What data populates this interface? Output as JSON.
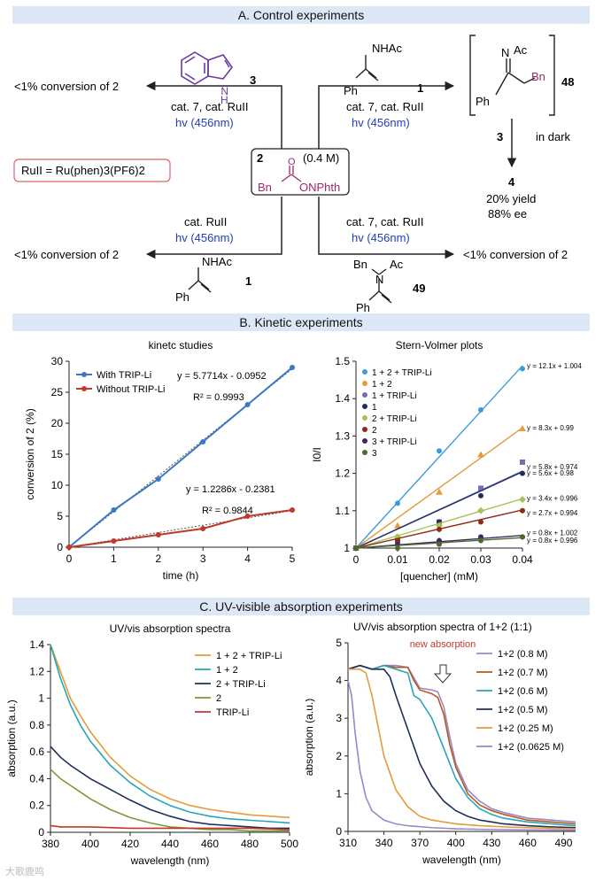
{
  "sections": {
    "a": "A. Control experiments",
    "b": "B. Kinetic experiments",
    "c": "C. UV-visible absorption experiments"
  },
  "scheme": {
    "cmpd3": "3",
    "cmpd1_top": "1",
    "cmpd1_bottom": "1",
    "cmpd48": "48",
    "cmpd49": "49",
    "cmpd4": "4",
    "cmpd2": "2",
    "conc": "(0.4 M)",
    "bn_left": "Bn",
    "onphth": "ONPhth",
    "o_atom": "O",
    "nhac_label": "NHAc",
    "ph_label": "Ph",
    "n_atom": "N",
    "h_atom": "H",
    "ac_label": "Ac",
    "bn_label": "Bn",
    "ru_def": "RuII = Ru(phen)3(PF6)2",
    "tl_cond1": "cat. 7, cat. RuII",
    "tl_cond2": "hv (456nm)",
    "tl_result": "<1% conversion of 2",
    "tr_cond1": "cat. 7, cat. RuII",
    "tr_cond2": "hv (456nm)",
    "bl_cond1": "cat. RuII",
    "bl_cond2": "hv (456nm)",
    "bl_result": "<1% conversion of 2",
    "br_cond1": "cat. 7, cat. RuII",
    "br_cond2": "hv (456nm)",
    "br_result": "<1% conversion of 2",
    "dark_reagent": "3",
    "dark_label": "in dark",
    "yield": "20% yield",
    "ee": "88% ee",
    "watermark": "大歌鹿鸣"
  },
  "colors": {
    "blue": "#3a78c2",
    "red": "#c0392b",
    "purple_struct": "#6a3aa0",
    "magenta": "#9b2a6b",
    "orange": "#e39b3c",
    "teal": "#28a6b8",
    "navy": "#1f2f5a",
    "olive": "#7a9a38",
    "lavender": "#9b87c9",
    "darkred": "#8e2a18",
    "darkgreen": "#4e6a2a"
  },
  "chart_data": [
    {
      "type": "line",
      "title": "kinetc studies",
      "xlabel": "time (h)",
      "ylabel": "conversion of 2 (%)",
      "xlim": [
        0,
        5
      ],
      "ylim": [
        0,
        30
      ],
      "xticks": [
        0,
        1,
        2,
        3,
        4,
        5
      ],
      "yticks": [
        0,
        5,
        10,
        15,
        20,
        25,
        30
      ],
      "legend_position": "top-left",
      "series": [
        {
          "name": "With TRIP-Li",
          "color": "#3a78c2",
          "x": [
            0,
            1,
            2,
            3,
            4,
            5
          ],
          "y": [
            0,
            6,
            11,
            17,
            23,
            29
          ],
          "fit": {
            "slope": 5.7714,
            "intercept": -0.0952
          },
          "equation": "y = 5.7714x - 0.0952",
          "r2": "R² = 0.9993"
        },
        {
          "name": "Without TRIP-Li",
          "color": "#c0392b",
          "x": [
            0,
            1,
            2,
            3,
            4,
            5
          ],
          "y": [
            0,
            1,
            2,
            3,
            5,
            6
          ],
          "fit": {
            "slope": 1.2286,
            "intercept": -0.2381
          },
          "equation": "y = 1.2286x - 0.2381",
          "r2": "R² = 0.9844"
        }
      ]
    },
    {
      "type": "scatter",
      "title": "Stern-Volmer plots",
      "xlabel": "[quencher] (mM)",
      "ylabel": "I0/I",
      "xlim": [
        0,
        0.04
      ],
      "ylim": [
        1,
        1.5
      ],
      "xticks": [
        0,
        0.01,
        0.02,
        0.03,
        0.04
      ],
      "yticks": [
        1,
        1.1,
        1.2,
        1.3,
        1.4,
        1.5
      ],
      "legend_position": "top-left",
      "series": [
        {
          "name": "1 + 2 + TRIP-Li",
          "color": "#3a9bd8",
          "marker": "circle",
          "slope": 12.1,
          "intercept": 1.004,
          "x": [
            0,
            0.01,
            0.02,
            0.03,
            0.04
          ],
          "y": [
            1,
            1.12,
            1.26,
            1.37,
            1.48
          ],
          "equation": "y = 12.1x + 1.004"
        },
        {
          "name": "1 + 2",
          "color": "#e39b3c",
          "marker": "triangle",
          "slope": 8.3,
          "intercept": 0.99,
          "x": [
            0,
            0.01,
            0.02,
            0.03,
            0.04
          ],
          "y": [
            1,
            1.06,
            1.15,
            1.25,
            1.32
          ],
          "equation": "y = 8.3x + 0.99"
        },
        {
          "name": "1 + TRIP-Li",
          "color": "#7a68b8",
          "marker": "square",
          "slope": 5.8,
          "intercept": 0.974,
          "x": [
            0,
            0.01,
            0.02,
            0.03,
            0.04
          ],
          "y": [
            1,
            1.02,
            1.07,
            1.16,
            1.23
          ],
          "equation": "y = 5.8x + 0.974"
        },
        {
          "name": "1",
          "color": "#1f2f5a",
          "marker": "circle",
          "slope": 5.6,
          "intercept": 0.98,
          "x": [
            0,
            0.01,
            0.02,
            0.03,
            0.04
          ],
          "y": [
            1,
            1.03,
            1.07,
            1.14,
            1.2
          ],
          "equation": "y = 5.6x + 0.98"
        },
        {
          "name": "2 + TRIP-Li",
          "color": "#a8c25a",
          "marker": "diamond",
          "slope": 3.4,
          "intercept": 0.996,
          "x": [
            0,
            0.01,
            0.02,
            0.03,
            0.04
          ],
          "y": [
            1,
            1.03,
            1.06,
            1.1,
            1.13
          ],
          "equation": "y = 3.4x + 0.996"
        },
        {
          "name": "2",
          "color": "#8e2a18",
          "marker": "circle",
          "slope": 2.7,
          "intercept": 0.994,
          "x": [
            0,
            0.01,
            0.02,
            0.03,
            0.04
          ],
          "y": [
            1,
            1.02,
            1.05,
            1.07,
            1.1
          ],
          "equation": "y = 2.7x + 0.994"
        },
        {
          "name": "3 + TRIP-Li",
          "color": "#3b2a66",
          "marker": "circle",
          "slope": 0.8,
          "intercept": 1.002,
          "x": [
            0,
            0.01,
            0.02,
            0.03,
            0.04
          ],
          "y": [
            1,
            1.01,
            1.02,
            1.03,
            1.03
          ],
          "equation": "y = 0.8x + 1.002"
        },
        {
          "name": "3",
          "color": "#4e6a2a",
          "marker": "circle",
          "slope": 0.8,
          "intercept": 0.996,
          "x": [
            0,
            0.01,
            0.02,
            0.03,
            0.04
          ],
          "y": [
            1,
            1.0,
            1.01,
            1.02,
            1.03
          ],
          "equation": "y = 0.8x + 0.996"
        }
      ]
    },
    {
      "type": "line",
      "title": "UV/vis absorption spectra",
      "xlabel": "wavelength (nm)",
      "ylabel": "absorption (a.u.)",
      "xlim": [
        380,
        500
      ],
      "ylim": [
        0,
        1.4
      ],
      "xticks": [
        380,
        400,
        420,
        440,
        460,
        480,
        500
      ],
      "yticks": [
        0,
        0.2,
        0.4,
        0.6,
        0.8,
        1,
        1.2,
        1.4
      ],
      "legend_position": "top-right",
      "series": [
        {
          "name": "1 + 2 + TRIP-Li",
          "color": "#e39b3c",
          "x": [
            380,
            385,
            390,
            395,
            400,
            410,
            420,
            430,
            440,
            450,
            460,
            470,
            480,
            490,
            500
          ],
          "y": [
            1.4,
            1.2,
            1.0,
            0.87,
            0.75,
            0.56,
            0.42,
            0.32,
            0.25,
            0.2,
            0.17,
            0.15,
            0.13,
            0.12,
            0.11
          ]
        },
        {
          "name": "1 + 2",
          "color": "#28a6b8",
          "x": [
            380,
            385,
            390,
            395,
            400,
            410,
            420,
            430,
            440,
            450,
            460,
            470,
            480,
            490,
            500
          ],
          "y": [
            1.4,
            1.15,
            0.95,
            0.8,
            0.68,
            0.5,
            0.37,
            0.27,
            0.2,
            0.15,
            0.12,
            0.1,
            0.09,
            0.08,
            0.07
          ]
        },
        {
          "name": "2 + TRIP-Li",
          "color": "#1f2f5a",
          "x": [
            380,
            385,
            390,
            395,
            400,
            410,
            420,
            430,
            440,
            450,
            460,
            470,
            480,
            490,
            500
          ],
          "y": [
            0.64,
            0.56,
            0.5,
            0.45,
            0.4,
            0.32,
            0.24,
            0.17,
            0.12,
            0.08,
            0.06,
            0.05,
            0.04,
            0.03,
            0.03
          ]
        },
        {
          "name": "2",
          "color": "#7a9a38",
          "x": [
            380,
            385,
            390,
            395,
            400,
            410,
            420,
            430,
            440,
            450,
            460,
            470,
            480,
            490,
            500
          ],
          "y": [
            0.47,
            0.4,
            0.35,
            0.3,
            0.25,
            0.17,
            0.11,
            0.07,
            0.04,
            0.03,
            0.02,
            0.02,
            0.01,
            0.01,
            0.01
          ]
        },
        {
          "name": "TRIP-Li",
          "color": "#c0392b",
          "x": [
            380,
            385,
            390,
            400,
            420,
            440,
            460,
            480,
            500
          ],
          "y": [
            0.05,
            0.04,
            0.04,
            0.04,
            0.03,
            0.03,
            0.03,
            0.03,
            0.02
          ]
        }
      ]
    },
    {
      "type": "line",
      "title": "UV/vis absorption spectra of 1+2 (1:1)",
      "xlabel": "wavelength (nm)",
      "ylabel": "absorption (a.u.)",
      "xlim": [
        310,
        500
      ],
      "ylim": [
        0,
        5
      ],
      "xticks": [
        310,
        340,
        370,
        400,
        430,
        460,
        490
      ],
      "yticks": [
        0,
        1,
        2,
        3,
        4,
        5
      ],
      "legend_position": "right",
      "annotation": "new absorption",
      "series": [
        {
          "name": "1+2 (0.8 M)",
          "color": "#9b87c9",
          "x": [
            310,
            320,
            330,
            340,
            350,
            360,
            370,
            380,
            385,
            390,
            395,
            400,
            410,
            420,
            430,
            440,
            460,
            480,
            500
          ],
          "y": [
            4.3,
            4.4,
            4.3,
            4.4,
            4.4,
            4.35,
            3.8,
            3.75,
            3.7,
            3.3,
            2.5,
            1.8,
            1.1,
            0.8,
            0.6,
            0.5,
            0.35,
            0.3,
            0.25
          ]
        },
        {
          "name": "1+2 (0.7 M)",
          "color": "#b5591c",
          "x": [
            310,
            320,
            330,
            340,
            350,
            360,
            365,
            370,
            380,
            385,
            390,
            395,
            400,
            410,
            420,
            430,
            440,
            460,
            480,
            500
          ],
          "y": [
            4.3,
            4.4,
            4.3,
            4.4,
            4.35,
            4.35,
            4.0,
            3.75,
            3.65,
            3.55,
            3.1,
            2.3,
            1.7,
            1.0,
            0.7,
            0.55,
            0.45,
            0.3,
            0.25,
            0.2
          ]
        },
        {
          "name": "1+2 (0.6 M)",
          "color": "#28a6b8",
          "x": [
            310,
            320,
            330,
            340,
            350,
            360,
            365,
            370,
            380,
            390,
            400,
            410,
            420,
            430,
            440,
            460,
            480,
            500
          ],
          "y": [
            4.3,
            4.4,
            4.3,
            4.4,
            4.3,
            4.2,
            3.6,
            3.5,
            3.0,
            2.2,
            1.4,
            0.9,
            0.6,
            0.45,
            0.35,
            0.25,
            0.2,
            0.15
          ]
        },
        {
          "name": "1+2 (0.5 M)",
          "color": "#1f2f5a",
          "x": [
            310,
            320,
            330,
            340,
            345,
            350,
            360,
            370,
            380,
            390,
            400,
            410,
            420,
            430,
            440,
            460,
            480,
            500
          ],
          "y": [
            4.3,
            4.4,
            4.3,
            4.3,
            4.1,
            3.6,
            2.7,
            1.8,
            1.2,
            0.8,
            0.55,
            0.4,
            0.3,
            0.25,
            0.2,
            0.15,
            0.12,
            0.1
          ]
        },
        {
          "name": "1+2 (0.25 M)",
          "color": "#e39b3c",
          "x": [
            310,
            320,
            325,
            330,
            335,
            340,
            350,
            360,
            370,
            380,
            400,
            420,
            440,
            460,
            480,
            500
          ],
          "y": [
            4.3,
            4.3,
            4.2,
            3.6,
            2.8,
            2.0,
            1.1,
            0.65,
            0.4,
            0.3,
            0.2,
            0.15,
            0.12,
            0.1,
            0.08,
            0.07
          ]
        },
        {
          "name": "1+2 (0.0625 M)",
          "color": "#9b87c9",
          "x": [
            310,
            313,
            316,
            320,
            325,
            330,
            340,
            350,
            360,
            380,
            400,
            430,
            460,
            500
          ],
          "y": [
            4.0,
            3.6,
            2.6,
            1.6,
            0.9,
            0.55,
            0.3,
            0.2,
            0.15,
            0.1,
            0.07,
            0.05,
            0.04,
            0.03
          ]
        }
      ]
    }
  ]
}
